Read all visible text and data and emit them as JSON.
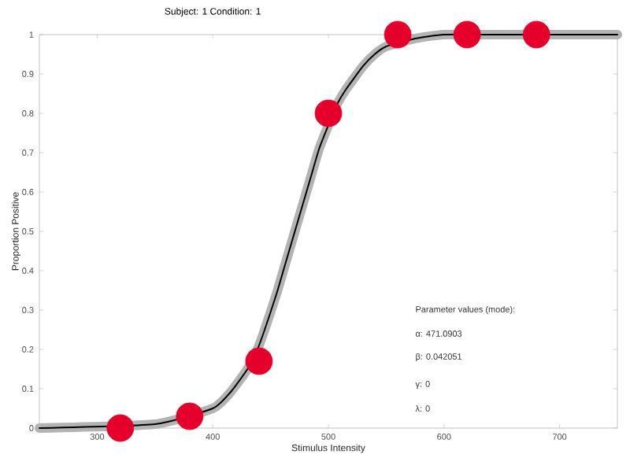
{
  "chart_data": {
    "type": "scatter",
    "title": "Subject: 1   Condition: 1",
    "xlabel": "Stimulus Intensity",
    "ylabel": "Proportion Positive",
    "xlim": [
      250,
      750
    ],
    "xticks": [
      300,
      400,
      500,
      600,
      700
    ],
    "ylim": [
      0,
      1
    ],
    "yticks": [
      0,
      0.1,
      0.2,
      0.3,
      0.4,
      0.5,
      0.6,
      0.7,
      0.8,
      0.9,
      1
    ],
    "grid": false,
    "series": [
      {
        "type": "line",
        "color": "#b3b3b3",
        "marker": "none",
        "x": [
          250,
          350,
          400,
          415,
          430,
          440,
          455,
          462,
          471,
          478,
          485,
          492,
          500,
          507,
          515,
          530,
          540,
          550,
          575,
          600,
          650,
          750
        ],
        "values": [
          0,
          0.01,
          0.05,
          0.09,
          0.15,
          0.21,
          0.34,
          0.41,
          0.5,
          0.57,
          0.64,
          0.71,
          0.77,
          0.82,
          0.86,
          0.92,
          0.95,
          0.97,
          0.99,
          1,
          1,
          1
        ]
      },
      {
        "type": "line",
        "color": "#000000",
        "marker": "none",
        "x": [
          250,
          350,
          400,
          415,
          430,
          440,
          455,
          462,
          471,
          478,
          485,
          492,
          500,
          507,
          515,
          530,
          540,
          550,
          575,
          600,
          650,
          750
        ],
        "values": [
          0,
          0.01,
          0.05,
          0.09,
          0.15,
          0.21,
          0.34,
          0.41,
          0.5,
          0.57,
          0.64,
          0.71,
          0.77,
          0.82,
          0.86,
          0.92,
          0.95,
          0.97,
          0.99,
          1,
          1,
          1
        ]
      },
      {
        "color": "#e4002b",
        "marker": "circle",
        "x": [
          320,
          380,
          440,
          500,
          560,
          620,
          680
        ],
        "values": [
          0,
          0.03,
          0.17,
          0.8,
          1,
          1,
          1
        ]
      }
    ],
    "annotations": [
      "Parameter values (mode):",
      "α: 471.0903",
      "β: 0.042051",
      "γ: 0",
      "λ: 0"
    ]
  }
}
